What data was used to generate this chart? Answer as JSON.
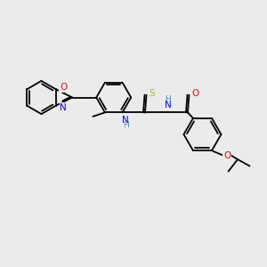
{
  "bg_color": "#ebebeb",
  "bond_color": "#000000",
  "bond_lw": 1.3,
  "atom_colors": {
    "O": "#ff0000",
    "N": "#0000ff",
    "S": "#b8b800",
    "H": "#4a8f8f",
    "C": "#000000"
  },
  "font_size": 7.5
}
